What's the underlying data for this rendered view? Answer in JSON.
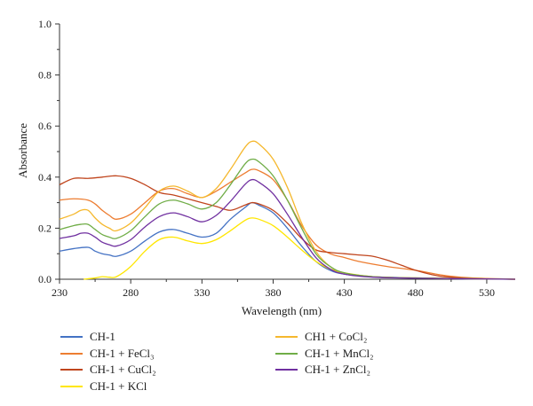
{
  "chart_data": {
    "type": "line",
    "title": "",
    "xlabel": "Wavelength (nm)",
    "ylabel": "Absorbance",
    "xlim": [
      230,
      550
    ],
    "ylim": [
      0.0,
      1.0
    ],
    "xticks": [
      230,
      280,
      330,
      380,
      430,
      480,
      530
    ],
    "xtick_labels": [
      "230",
      "280",
      "330",
      "380",
      "430",
      "480",
      "530"
    ],
    "yticks": [
      0.0,
      0.2,
      0.4,
      0.6,
      0.8,
      1.0
    ],
    "ytick_labels": [
      "0.0",
      "0.2",
      "0.4",
      "0.6",
      "0.8",
      "1.0"
    ],
    "grid": false,
    "legend_position": "bottom",
    "series": [
      {
        "name": "CH-1",
        "color": "#4472c4",
        "points": [
          [
            230,
            0.11
          ],
          [
            240,
            0.12
          ],
          [
            250,
            0.125
          ],
          [
            255,
            0.11
          ],
          [
            260,
            0.1
          ],
          [
            265,
            0.095
          ],
          [
            270,
            0.09
          ],
          [
            280,
            0.11
          ],
          [
            290,
            0.15
          ],
          [
            300,
            0.185
          ],
          [
            310,
            0.195
          ],
          [
            320,
            0.18
          ],
          [
            330,
            0.165
          ],
          [
            340,
            0.18
          ],
          [
            350,
            0.235
          ],
          [
            360,
            0.28
          ],
          [
            365,
            0.3
          ],
          [
            370,
            0.29
          ],
          [
            380,
            0.26
          ],
          [
            390,
            0.2
          ],
          [
            400,
            0.13
          ],
          [
            410,
            0.07
          ],
          [
            420,
            0.035
          ],
          [
            430,
            0.02
          ],
          [
            450,
            0.01
          ],
          [
            480,
            0.005
          ],
          [
            510,
            0.002
          ],
          [
            550,
            0.0
          ]
        ]
      },
      {
        "name": "CH-1 + FeCl₃",
        "color": "#ed7d31",
        "points": [
          [
            230,
            0.31
          ],
          [
            240,
            0.315
          ],
          [
            250,
            0.31
          ],
          [
            255,
            0.295
          ],
          [
            260,
            0.27
          ],
          [
            265,
            0.25
          ],
          [
            270,
            0.235
          ],
          [
            280,
            0.255
          ],
          [
            290,
            0.3
          ],
          [
            300,
            0.345
          ],
          [
            310,
            0.355
          ],
          [
            320,
            0.335
          ],
          [
            330,
            0.32
          ],
          [
            340,
            0.345
          ],
          [
            350,
            0.38
          ],
          [
            360,
            0.415
          ],
          [
            365,
            0.43
          ],
          [
            370,
            0.425
          ],
          [
            380,
            0.39
          ],
          [
            390,
            0.31
          ],
          [
            400,
            0.21
          ],
          [
            410,
            0.135
          ],
          [
            420,
            0.1
          ],
          [
            430,
            0.085
          ],
          [
            440,
            0.07
          ],
          [
            460,
            0.05
          ],
          [
            480,
            0.035
          ],
          [
            500,
            0.015
          ],
          [
            520,
            0.005
          ],
          [
            550,
            0.0
          ]
        ]
      },
      {
        "name": "CH-1 + CuCl₂",
        "color": "#c0451d",
        "points": [
          [
            230,
            0.37
          ],
          [
            240,
            0.395
          ],
          [
            250,
            0.395
          ],
          [
            260,
            0.4
          ],
          [
            270,
            0.405
          ],
          [
            280,
            0.395
          ],
          [
            290,
            0.37
          ],
          [
            300,
            0.34
          ],
          [
            310,
            0.33
          ],
          [
            320,
            0.315
          ],
          [
            330,
            0.3
          ],
          [
            340,
            0.285
          ],
          [
            350,
            0.27
          ],
          [
            360,
            0.29
          ],
          [
            365,
            0.3
          ],
          [
            370,
            0.295
          ],
          [
            380,
            0.27
          ],
          [
            390,
            0.22
          ],
          [
            400,
            0.16
          ],
          [
            410,
            0.115
          ],
          [
            420,
            0.105
          ],
          [
            430,
            0.1
          ],
          [
            440,
            0.095
          ],
          [
            450,
            0.09
          ],
          [
            460,
            0.075
          ],
          [
            470,
            0.055
          ],
          [
            480,
            0.035
          ],
          [
            490,
            0.02
          ],
          [
            500,
            0.01
          ],
          [
            520,
            0.003
          ],
          [
            550,
            0.0
          ]
        ]
      },
      {
        "name": "CH-1 + KCl",
        "color": "#ffe600",
        "points": [
          [
            247,
            0.0
          ],
          [
            255,
            0.005
          ],
          [
            260,
            0.01
          ],
          [
            265,
            0.008
          ],
          [
            270,
            0.01
          ],
          [
            280,
            0.05
          ],
          [
            290,
            0.11
          ],
          [
            300,
            0.155
          ],
          [
            310,
            0.165
          ],
          [
            320,
            0.15
          ],
          [
            330,
            0.14
          ],
          [
            340,
            0.155
          ],
          [
            350,
            0.19
          ],
          [
            360,
            0.23
          ],
          [
            365,
            0.24
          ],
          [
            370,
            0.235
          ],
          [
            380,
            0.21
          ],
          [
            390,
            0.165
          ],
          [
            400,
            0.115
          ],
          [
            410,
            0.07
          ],
          [
            420,
            0.04
          ],
          [
            430,
            0.025
          ],
          [
            450,
            0.01
          ],
          [
            480,
            0.005
          ],
          [
            550,
            0.0
          ]
        ]
      },
      {
        "name": "CH1 + CoCl₂",
        "color": "#f5b82e",
        "points": [
          [
            230,
            0.235
          ],
          [
            240,
            0.255
          ],
          [
            245,
            0.27
          ],
          [
            250,
            0.27
          ],
          [
            255,
            0.24
          ],
          [
            260,
            0.215
          ],
          [
            265,
            0.2
          ],
          [
            270,
            0.19
          ],
          [
            280,
            0.22
          ],
          [
            290,
            0.28
          ],
          [
            300,
            0.345
          ],
          [
            310,
            0.365
          ],
          [
            320,
            0.345
          ],
          [
            330,
            0.32
          ],
          [
            340,
            0.355
          ],
          [
            350,
            0.43
          ],
          [
            360,
            0.515
          ],
          [
            365,
            0.54
          ],
          [
            370,
            0.53
          ],
          [
            380,
            0.47
          ],
          [
            390,
            0.36
          ],
          [
            400,
            0.22
          ],
          [
            410,
            0.11
          ],
          [
            420,
            0.05
          ],
          [
            430,
            0.025
          ],
          [
            450,
            0.01
          ],
          [
            480,
            0.005
          ],
          [
            550,
            0.0
          ]
        ]
      },
      {
        "name": "CH-1 + MnCl₂",
        "color": "#70ad47",
        "points": [
          [
            230,
            0.195
          ],
          [
            240,
            0.21
          ],
          [
            245,
            0.215
          ],
          [
            250,
            0.215
          ],
          [
            255,
            0.195
          ],
          [
            260,
            0.175
          ],
          [
            265,
            0.165
          ],
          [
            270,
            0.16
          ],
          [
            280,
            0.19
          ],
          [
            290,
            0.245
          ],
          [
            300,
            0.295
          ],
          [
            310,
            0.31
          ],
          [
            320,
            0.295
          ],
          [
            330,
            0.275
          ],
          [
            340,
            0.3
          ],
          [
            350,
            0.37
          ],
          [
            360,
            0.45
          ],
          [
            365,
            0.47
          ],
          [
            370,
            0.46
          ],
          [
            380,
            0.405
          ],
          [
            390,
            0.31
          ],
          [
            400,
            0.2
          ],
          [
            410,
            0.1
          ],
          [
            420,
            0.05
          ],
          [
            430,
            0.025
          ],
          [
            450,
            0.01
          ],
          [
            480,
            0.005
          ],
          [
            550,
            0.0
          ]
        ]
      },
      {
        "name": "CH-1 + ZnCl₂",
        "color": "#7030a0",
        "points": [
          [
            230,
            0.16
          ],
          [
            240,
            0.17
          ],
          [
            245,
            0.18
          ],
          [
            250,
            0.18
          ],
          [
            255,
            0.165
          ],
          [
            260,
            0.145
          ],
          [
            265,
            0.135
          ],
          [
            270,
            0.13
          ],
          [
            280,
            0.155
          ],
          [
            290,
            0.205
          ],
          [
            300,
            0.245
          ],
          [
            310,
            0.26
          ],
          [
            320,
            0.245
          ],
          [
            330,
            0.225
          ],
          [
            340,
            0.25
          ],
          [
            350,
            0.305
          ],
          [
            360,
            0.37
          ],
          [
            365,
            0.39
          ],
          [
            370,
            0.38
          ],
          [
            380,
            0.335
          ],
          [
            390,
            0.255
          ],
          [
            400,
            0.165
          ],
          [
            410,
            0.085
          ],
          [
            420,
            0.04
          ],
          [
            430,
            0.02
          ],
          [
            450,
            0.008
          ],
          [
            480,
            0.004
          ],
          [
            550,
            0.0
          ]
        ]
      }
    ]
  }
}
